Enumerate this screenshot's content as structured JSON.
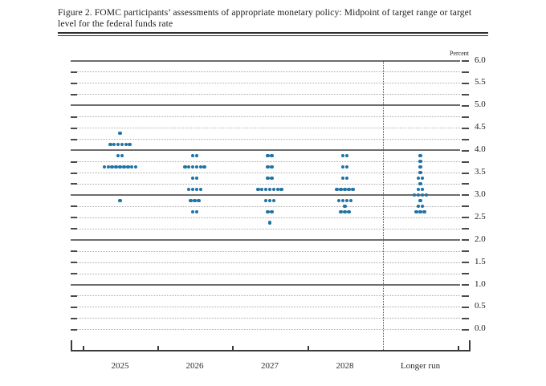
{
  "chart_data": {
    "type": "scatter",
    "subtype": "fomc-dot-plot",
    "title": "Figure 2. FOMC participants’ assessments of appropriate monetary policy: Midpoint of target range or target level for the federal funds rate",
    "ylabel": "Percent",
    "xlabel": "",
    "ylim": [
      0.0,
      6.0
    ],
    "ytick_minor_step": 0.25,
    "ytick_labels": [
      "6.0",
      "5.5",
      "5.0",
      "4.5",
      "4.0",
      "3.5",
      "3.0",
      "2.5",
      "2.0",
      "1.5",
      "1.0",
      "0.5",
      "0.0"
    ],
    "solid_gridlines": [
      6.0,
      5.0,
      4.0,
      3.0,
      2.0,
      1.0
    ],
    "grid": "dotted minor gridlines every 0.25, solid lines at whole percents except 0.0",
    "legend_position": "none",
    "dot_color": "#1f73a6",
    "categories": [
      "2025",
      "2026",
      "2027",
      "2028",
      "Longer run"
    ],
    "separator_before_category": "Longer run",
    "series": [
      {
        "name": "2025",
        "dots": [
          {
            "value": 4.375,
            "count": 1
          },
          {
            "value": 4.125,
            "count": 6
          },
          {
            "value": 3.875,
            "count": 2
          },
          {
            "value": 3.625,
            "count": 9
          },
          {
            "value": 2.875,
            "count": 1
          }
        ]
      },
      {
        "name": "2026",
        "dots": [
          {
            "value": 3.875,
            "count": 2
          },
          {
            "value": 3.625,
            "count": 6
          },
          {
            "value": 3.375,
            "count": 2
          },
          {
            "value": 3.125,
            "count": 4
          },
          {
            "value": 2.875,
            "count": 3
          },
          {
            "value": 2.625,
            "count": 2
          }
        ]
      },
      {
        "name": "2027",
        "dots": [
          {
            "value": 3.875,
            "count": 2
          },
          {
            "value": 3.625,
            "count": 2
          },
          {
            "value": 3.375,
            "count": 2
          },
          {
            "value": 3.125,
            "count": 7
          },
          {
            "value": 2.875,
            "count": 3
          },
          {
            "value": 2.625,
            "count": 2
          },
          {
            "value": 2.375,
            "count": 1
          }
        ]
      },
      {
        "name": "2028",
        "dots": [
          {
            "value": 3.875,
            "count": 2
          },
          {
            "value": 3.625,
            "count": 2
          },
          {
            "value": 3.375,
            "count": 2
          },
          {
            "value": 3.125,
            "count": 5
          },
          {
            "value": 2.875,
            "count": 4
          },
          {
            "value": 2.75,
            "count": 1
          },
          {
            "value": 2.625,
            "count": 3
          }
        ]
      },
      {
        "name": "Longer run",
        "dots": [
          {
            "value": 3.875,
            "count": 1
          },
          {
            "value": 3.75,
            "count": 1
          },
          {
            "value": 3.625,
            "count": 1
          },
          {
            "value": 3.5,
            "count": 1
          },
          {
            "value": 3.375,
            "count": 2
          },
          {
            "value": 3.25,
            "count": 1
          },
          {
            "value": 3.125,
            "count": 2
          },
          {
            "value": 3.0,
            "count": 4
          },
          {
            "value": 2.875,
            "count": 1
          },
          {
            "value": 2.75,
            "count": 2
          },
          {
            "value": 2.625,
            "count": 3
          }
        ]
      }
    ]
  }
}
